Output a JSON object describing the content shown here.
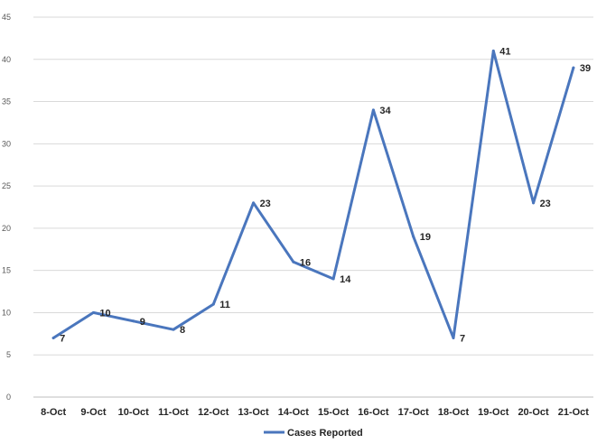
{
  "chart_data": {
    "type": "line",
    "categories": [
      "8-Oct",
      "9-Oct",
      "10-Oct",
      "11-Oct",
      "12-Oct",
      "13-Oct",
      "14-Oct",
      "15-Oct",
      "16-Oct",
      "17-Oct",
      "18-Oct",
      "19-Oct",
      "20-Oct",
      "21-Oct"
    ],
    "series": [
      {
        "name": "Cases Reported",
        "values": [
          7,
          10,
          9,
          8,
          11,
          23,
          16,
          14,
          34,
          19,
          7,
          41,
          23,
          39
        ],
        "color": "#4a76bd"
      }
    ],
    "ylim": [
      0,
      45
    ],
    "yticks": [
      0,
      5,
      10,
      15,
      20,
      25,
      30,
      35,
      40,
      45
    ],
    "grid": true,
    "legend": "bottom",
    "data_labels": true
  }
}
